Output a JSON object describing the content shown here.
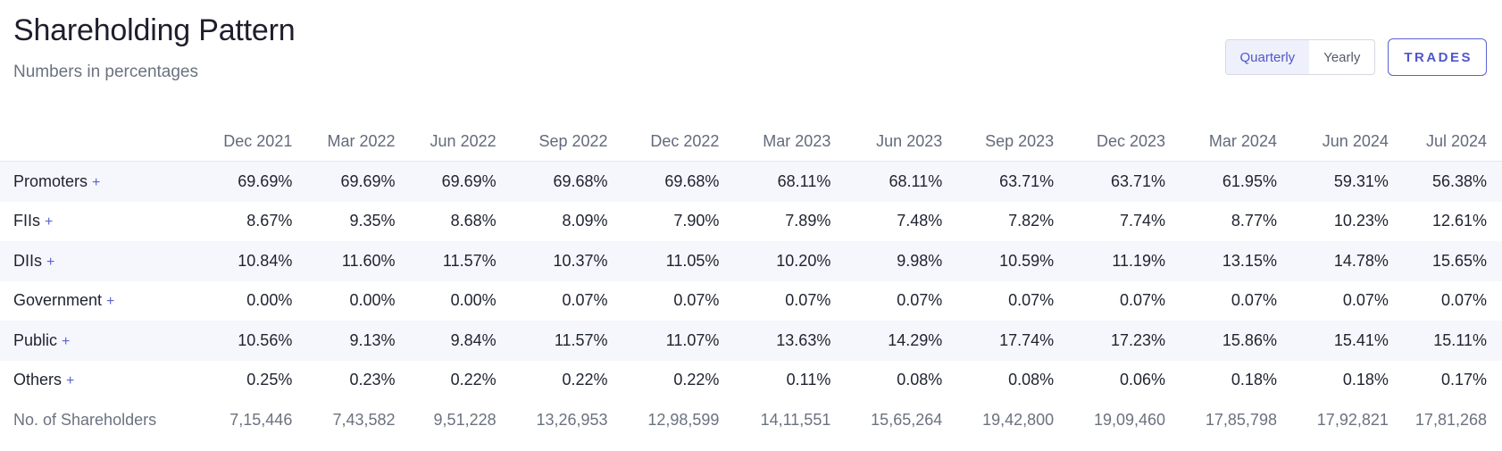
{
  "header": {
    "title": "Shareholding Pattern",
    "subtitle": "Numbers in percentages"
  },
  "controls": {
    "quarterly_label": "Quarterly",
    "yearly_label": "Yearly",
    "trades_label": "TRADES",
    "active": "Quarterly"
  },
  "table": {
    "columns": [
      "Dec 2021",
      "Mar 2022",
      "Jun 2022",
      "Sep 2022",
      "Dec 2022",
      "Mar 2023",
      "Jun 2023",
      "Sep 2023",
      "Dec 2023",
      "Mar 2024",
      "Jun 2024",
      "Jul 2024"
    ],
    "rows": [
      {
        "label": "Promoters",
        "expand": "+",
        "values": [
          "69.69%",
          "69.69%",
          "69.69%",
          "69.68%",
          "69.68%",
          "68.11%",
          "68.11%",
          "63.71%",
          "63.71%",
          "61.95%",
          "59.31%",
          "56.38%"
        ]
      },
      {
        "label": "FIIs",
        "expand": "+",
        "values": [
          "8.67%",
          "9.35%",
          "8.68%",
          "8.09%",
          "7.90%",
          "7.89%",
          "7.48%",
          "7.82%",
          "7.74%",
          "8.77%",
          "10.23%",
          "12.61%"
        ]
      },
      {
        "label": "DIIs",
        "expand": "+",
        "values": [
          "10.84%",
          "11.60%",
          "11.57%",
          "10.37%",
          "11.05%",
          "10.20%",
          "9.98%",
          "10.59%",
          "11.19%",
          "13.15%",
          "14.78%",
          "15.65%"
        ]
      },
      {
        "label": "Government",
        "expand": "+",
        "values": [
          "0.00%",
          "0.00%",
          "0.00%",
          "0.07%",
          "0.07%",
          "0.07%",
          "0.07%",
          "0.07%",
          "0.07%",
          "0.07%",
          "0.07%",
          "0.07%"
        ]
      },
      {
        "label": "Public",
        "expand": "+",
        "values": [
          "10.56%",
          "9.13%",
          "9.84%",
          "11.57%",
          "11.07%",
          "13.63%",
          "14.29%",
          "17.74%",
          "17.23%",
          "15.86%",
          "15.41%",
          "15.11%"
        ]
      },
      {
        "label": "Others",
        "expand": "+",
        "values": [
          "0.25%",
          "0.23%",
          "0.22%",
          "0.22%",
          "0.22%",
          "0.11%",
          "0.08%",
          "0.08%",
          "0.06%",
          "0.18%",
          "0.18%",
          "0.17%"
        ]
      }
    ],
    "shareholders": {
      "label": "No. of Shareholders",
      "values": [
        "7,15,446",
        "7,43,582",
        "9,51,228",
        "13,26,953",
        "12,98,599",
        "14,11,551",
        "15,65,264",
        "19,42,800",
        "19,09,460",
        "17,85,798",
        "17,92,821",
        "17,81,268"
      ]
    }
  }
}
